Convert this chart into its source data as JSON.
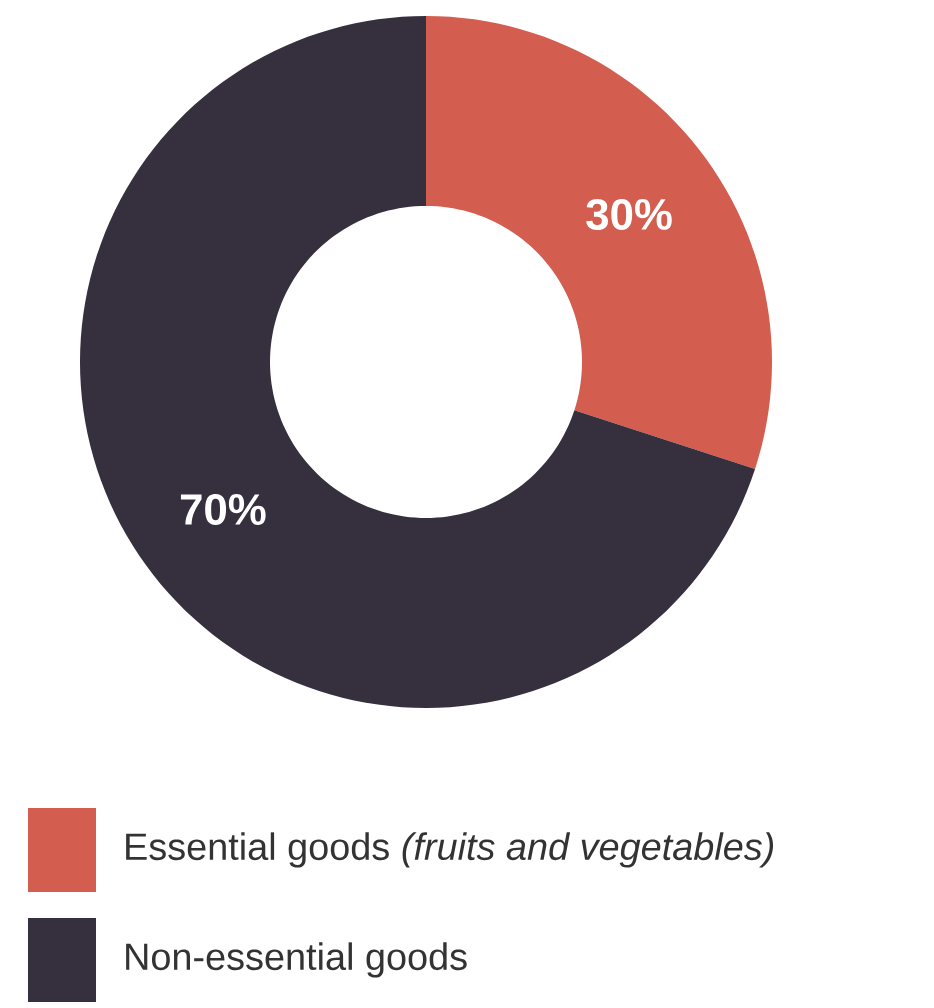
{
  "chart_data": {
    "type": "donut",
    "categories": [
      "Essential goods *(fruits and vegetables)*",
      "Non-essential goods"
    ],
    "values": [
      30,
      70
    ],
    "colors": [
      "#d35d4f",
      "#352f3e"
    ],
    "value_labels": [
      "30%",
      "70%"
    ],
    "legend": "bottom"
  }
}
